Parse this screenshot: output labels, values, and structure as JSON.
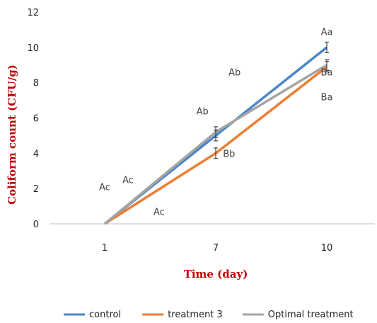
{
  "chart_data": {
    "type": "line",
    "categories": [
      "1",
      "7",
      "10"
    ],
    "xlabel": "Time (day)",
    "ylabel": "Coliform count (CFU/g)",
    "ylim": [
      0,
      12
    ],
    "yticks": [
      "0",
      "2",
      "4",
      "6",
      "8",
      "10",
      "12"
    ],
    "grid": false,
    "legend_position": "bottom",
    "series": [
      {
        "name": "control",
        "color": "#4a86c8",
        "values": [
          0,
          5.0,
          10.0
        ],
        "errors": [
          0,
          0.3,
          0.3
        ]
      },
      {
        "name": "treatment 3",
        "color": "#ed7d31",
        "values": [
          0,
          4.0,
          8.9
        ],
        "errors": [
          0,
          0.3,
          0.3
        ]
      },
      {
        "name": "Optimal treatment",
        "color": "#a5a5a5",
        "values": [
          0,
          5.2,
          9.0
        ],
        "errors": [
          0,
          0.3,
          0.3
        ]
      }
    ],
    "annotations": [
      {
        "text": "Ac",
        "x": 0.0,
        "y": 2.1
      },
      {
        "text": "Ac",
        "x": 0.21,
        "y": 2.5
      },
      {
        "text": "Ac",
        "x": 0.49,
        "y": 0.7
      },
      {
        "text": "Ab",
        "x": 0.88,
        "y": 6.4
      },
      {
        "text": "Ab",
        "x": 1.17,
        "y": 8.6
      },
      {
        "text": "Bb",
        "x": 1.12,
        "y": 4.0
      },
      {
        "text": "Aa",
        "x": 2.16,
        "y": 10.9
      },
      {
        "text": "Ba",
        "x": 2.26,
        "y": 8.6
      },
      {
        "text": "Ba",
        "x": 2.11,
        "y": 7.2
      }
    ]
  }
}
